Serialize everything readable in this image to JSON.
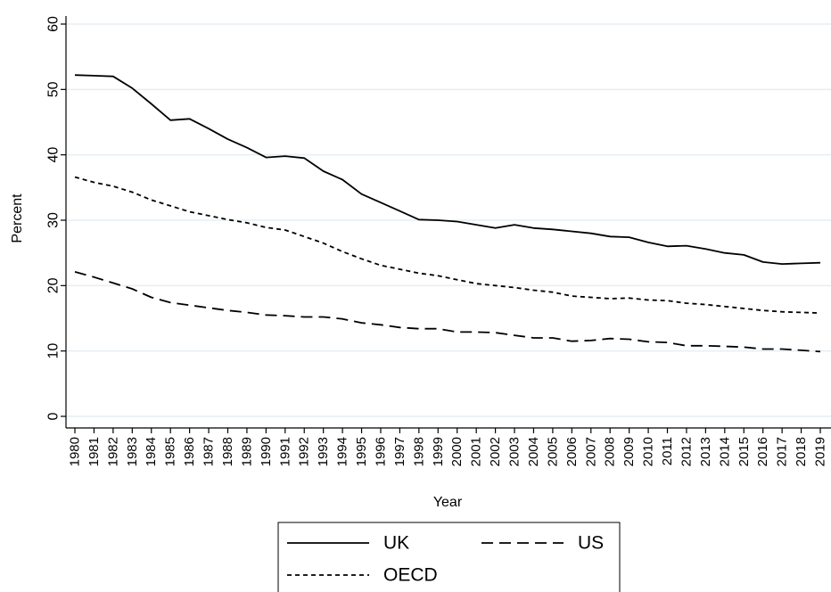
{
  "chart_data": {
    "type": "line",
    "title": "",
    "xlabel": "Year",
    "ylabel": "Percent",
    "ylim": [
      0,
      60
    ],
    "yticks": [
      0,
      10,
      20,
      30,
      40,
      50,
      60
    ],
    "grid": true,
    "legend_position": "bottom",
    "x": [
      1980,
      1981,
      1982,
      1983,
      1984,
      1985,
      1986,
      1987,
      1988,
      1989,
      1990,
      1991,
      1992,
      1993,
      1994,
      1995,
      1996,
      1997,
      1998,
      1999,
      2000,
      2001,
      2002,
      2003,
      2004,
      2005,
      2006,
      2007,
      2008,
      2009,
      2010,
      2011,
      2012,
      2013,
      2014,
      2015,
      2016,
      2017,
      2018,
      2019
    ],
    "series": [
      {
        "name": "UK",
        "dash": "solid",
        "color": "#000000",
        "values": [
          52.2,
          52.1,
          52.0,
          50.2,
          47.8,
          45.3,
          45.5,
          44.0,
          42.4,
          41.1,
          39.6,
          39.8,
          39.5,
          37.5,
          36.2,
          34.0,
          32.7,
          31.4,
          30.1,
          30.0,
          29.8,
          29.3,
          28.8,
          29.3,
          28.8,
          28.6,
          28.3,
          28.0,
          27.5,
          27.4,
          26.6,
          26.0,
          26.1,
          25.6,
          25.0,
          24.7,
          23.6,
          23.3,
          23.4,
          23.5
        ]
      },
      {
        "name": "US",
        "dash": "long-dash",
        "color": "#000000",
        "values": [
          22.1,
          21.3,
          20.4,
          19.5,
          18.2,
          17.4,
          17.0,
          16.6,
          16.2,
          15.9,
          15.5,
          15.4,
          15.2,
          15.2,
          14.9,
          14.3,
          14.0,
          13.6,
          13.4,
          13.4,
          12.9,
          12.9,
          12.8,
          12.4,
          12.0,
          12.0,
          11.5,
          11.6,
          11.9,
          11.8,
          11.4,
          11.3,
          10.8,
          10.8,
          10.7,
          10.6,
          10.3,
          10.3,
          10.1,
          9.9
        ]
      },
      {
        "name": "OECD",
        "dash": "short-dash",
        "color": "#000000",
        "values": [
          36.6,
          35.8,
          35.2,
          34.3,
          33.1,
          32.2,
          31.3,
          30.7,
          30.1,
          29.6,
          28.9,
          28.5,
          27.5,
          26.5,
          25.2,
          24.1,
          23.1,
          22.5,
          21.9,
          21.5,
          20.9,
          20.3,
          20.0,
          19.7,
          19.3,
          19.0,
          18.4,
          18.2,
          18.0,
          18.1,
          17.8,
          17.7,
          17.3,
          17.1,
          16.8,
          16.5,
          16.2,
          16.0,
          15.9,
          15.8
        ]
      }
    ]
  }
}
